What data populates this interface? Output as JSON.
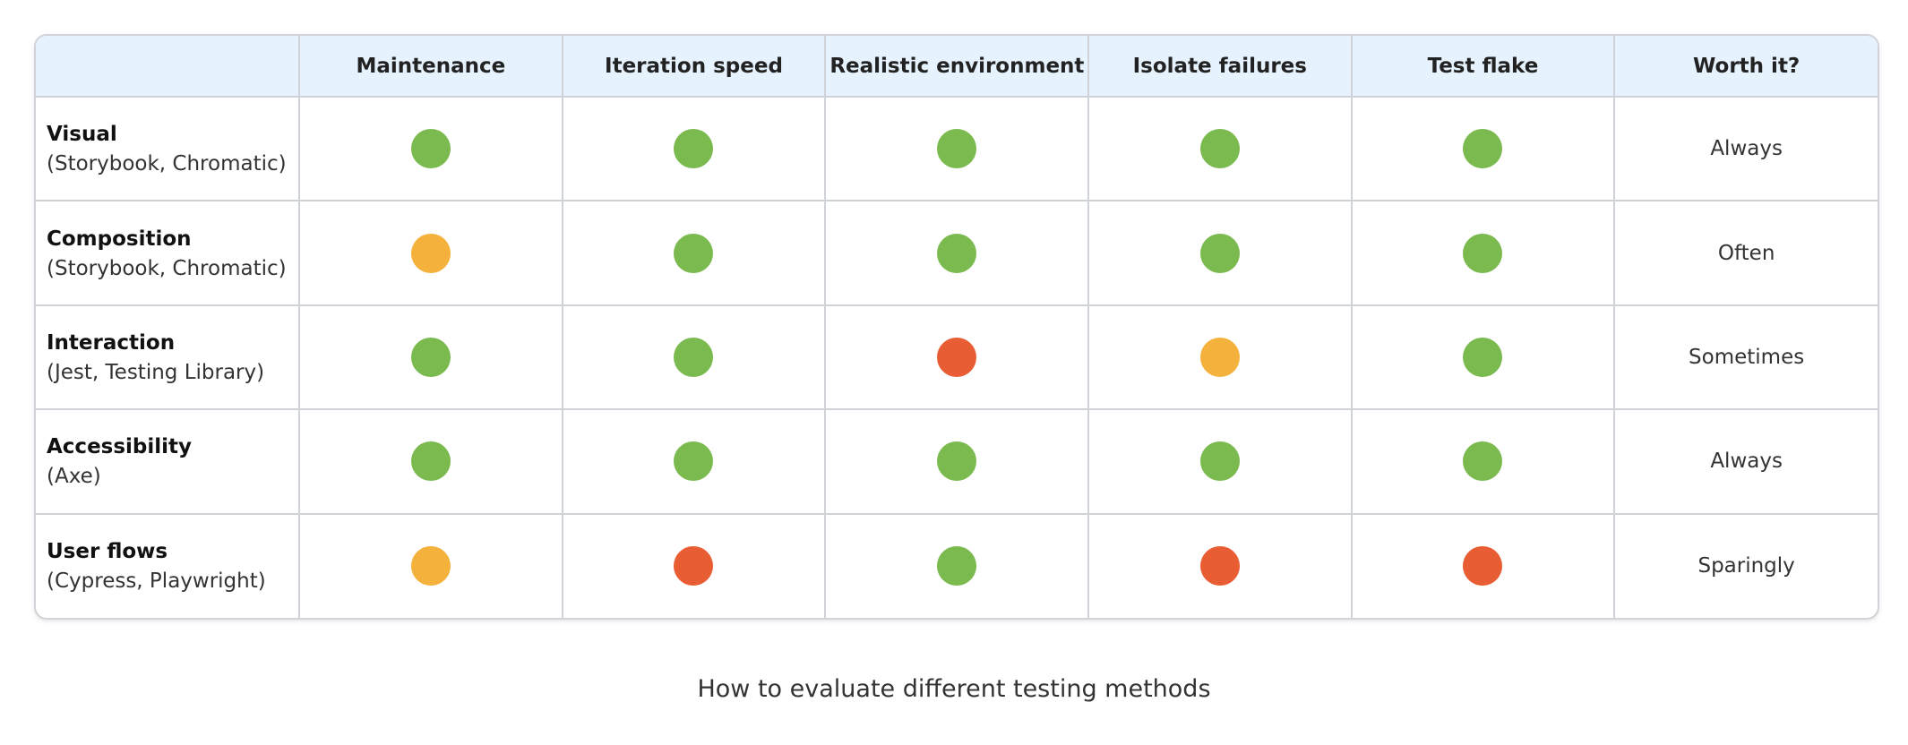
{
  "colors": {
    "good": "#7aba4f",
    "fair": "#f4b23c",
    "poor": "#e85d34",
    "header_bg": "#e6f2fd"
  },
  "table": {
    "corner_label": "",
    "columns": [
      "Maintenance",
      "Iteration speed",
      "Realistic environment",
      "Isolate failures",
      "Test flake",
      "Worth it?"
    ],
    "rows": [
      {
        "name": "Visual",
        "tools": "(Storybook, Chromatic)",
        "ratings": [
          "good",
          "good",
          "good",
          "good",
          "good"
        ],
        "worth": "Always"
      },
      {
        "name": "Composition",
        "tools": "(Storybook, Chromatic)",
        "ratings": [
          "fair",
          "good",
          "good",
          "good",
          "good"
        ],
        "worth": "Often"
      },
      {
        "name": "Interaction",
        "tools": "(Jest, Testing Library)",
        "ratings": [
          "good",
          "good",
          "poor",
          "fair",
          "good"
        ],
        "worth": "Sometimes"
      },
      {
        "name": "Accessibility",
        "tools": "(Axe)",
        "ratings": [
          "good",
          "good",
          "good",
          "good",
          "good"
        ],
        "worth": "Always"
      },
      {
        "name": "User flows",
        "tools": "(Cypress, Playwright)",
        "ratings": [
          "fair",
          "poor",
          "good",
          "poor",
          "poor"
        ],
        "worth": "Sparingly"
      }
    ]
  },
  "caption": "How to evaluate different testing methods"
}
